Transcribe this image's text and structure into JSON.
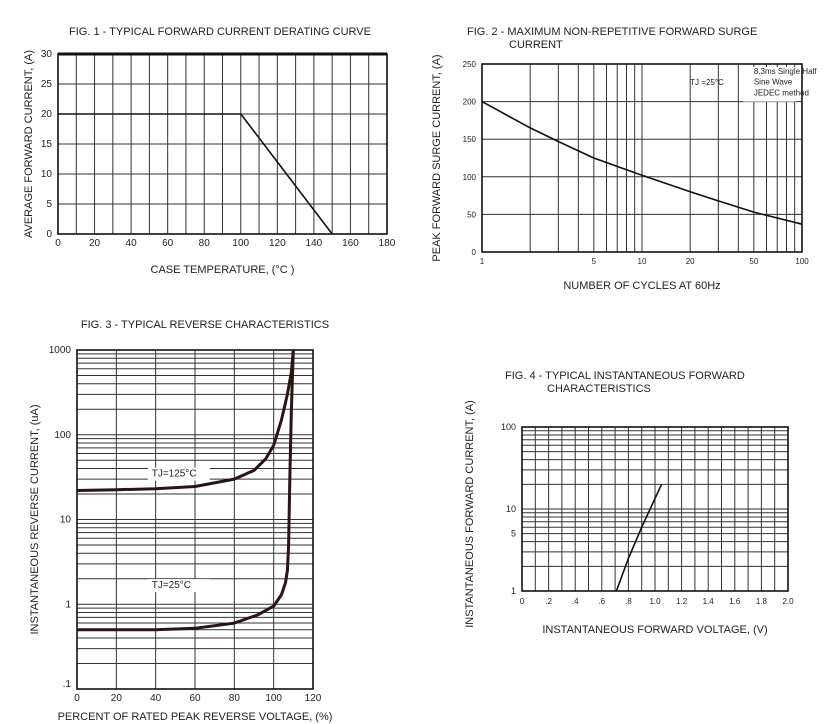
{
  "chart_data": [
    {
      "type": "line",
      "title": [
        "FIG. 1 - TYPICAL FORWARD CURRENT DERATING CURVE"
      ],
      "xlabel": "CASE TEMPERATURE, (°C )",
      "ylabel": "AVERAGE FORWARD CURRENT, (A)",
      "xscale": "linear",
      "yscale": "linear",
      "xlim": [
        0,
        180
      ],
      "ylim": [
        0,
        30
      ],
      "grid": true,
      "xticks": [
        {
          "v": 0,
          "label": "0"
        },
        {
          "v": 20,
          "label": "20"
        },
        {
          "v": 40,
          "label": "40"
        },
        {
          "v": 60,
          "label": "60"
        },
        {
          "v": 80,
          "label": "80"
        },
        {
          "v": 100,
          "label": "100"
        },
        {
          "v": 120,
          "label": "120"
        },
        {
          "v": 140,
          "label": "140"
        },
        {
          "v": 160,
          "label": "160"
        },
        {
          "v": 180,
          "label": "180"
        }
      ],
      "yticks": [
        {
          "v": 0,
          "label": "0"
        },
        {
          "v": 5,
          "label": "5"
        },
        {
          "v": 10,
          "label": "10"
        },
        {
          "v": 15,
          "label": "15"
        },
        {
          "v": 20,
          "label": "20"
        },
        {
          "v": 25,
          "label": "25"
        },
        {
          "v": 30,
          "label": "30"
        }
      ],
      "series": [
        {
          "x": [
            0,
            100,
            150
          ],
          "y": [
            20,
            20,
            0
          ]
        }
      ],
      "annotations": []
    },
    {
      "type": "line",
      "title": [
        "FIG. 2 - MAXIMUM NON-REPETITIVE FORWARD SURGE",
        "CURRENT"
      ],
      "xlabel": "NUMBER OF CYCLES AT 60Hz",
      "ylabel": "PEAK FORWARD SURGE CURRENT, (A)",
      "xscale": "log",
      "yscale": "linear",
      "xlim": [
        1,
        100
      ],
      "ylim": [
        0,
        250
      ],
      "grid": true,
      "xticks": [
        {
          "v": 1,
          "label": "1"
        },
        {
          "v": 5,
          "label": "5"
        },
        {
          "v": 10,
          "label": "10"
        },
        {
          "v": 20,
          "label": "20"
        },
        {
          "v": 50,
          "label": "50"
        },
        {
          "v": 100,
          "label": "100"
        }
      ],
      "yticks": [
        {
          "v": 0,
          "label": "0"
        },
        {
          "v": 50,
          "label": "50"
        },
        {
          "v": 100,
          "label": "100"
        },
        {
          "v": 150,
          "label": "150"
        },
        {
          "v": 200,
          "label": "200"
        },
        {
          "v": 250,
          "label": "250"
        }
      ],
      "series": [
        {
          "x": [
            1,
            2,
            3,
            5,
            10,
            20,
            30,
            50,
            100
          ],
          "y": [
            200,
            165,
            147,
            125,
            102,
            80,
            68,
            53,
            37
          ]
        }
      ],
      "annotations": [
        {
          "text": "TJ =25°C",
          "x": 20,
          "y": 222
        },
        {
          "text": "8.3ms Single Half",
          "x": 50,
          "y": 237
        },
        {
          "text": "Sine Wave",
          "x": 50,
          "y": 223
        },
        {
          "text": "JEDEC method",
          "x": 50,
          "y": 208
        }
      ]
    },
    {
      "type": "line",
      "title": [
        "FIG. 3 - TYPICAL REVERSE CHARACTERISTICS"
      ],
      "xlabel": "PERCENT OF RATED PEAK REVERSE VOLTAGE, (%)",
      "ylabel": "INSTANTANEOUS REVERSE CURRENT, (uA)",
      "xscale": "linear",
      "yscale": "log",
      "xlim": [
        0,
        120
      ],
      "ylim": [
        0.1,
        1000
      ],
      "grid": true,
      "xticks": [
        {
          "v": 0,
          "label": "0"
        },
        {
          "v": 20,
          "label": "20"
        },
        {
          "v": 40,
          "label": "40"
        },
        {
          "v": 60,
          "label": "60"
        },
        {
          "v": 80,
          "label": "80"
        },
        {
          "v": 100,
          "label": "100"
        },
        {
          "v": 120,
          "label": "120"
        }
      ],
      "yticks": [
        {
          "v": 0.1,
          "label": ".1"
        },
        {
          "v": 1,
          "label": "1"
        },
        {
          "v": 10,
          "label": "10"
        },
        {
          "v": 100,
          "label": "100"
        },
        {
          "v": 1000,
          "label": "1000"
        }
      ],
      "series": [
        {
          "name": "TJ=125°C",
          "x": [
            0,
            20,
            40,
            60,
            80,
            90,
            96,
            100,
            104,
            107,
            109,
            110
          ],
          "y": [
            22,
            22.5,
            23,
            24.5,
            30,
            38,
            52,
            75,
            150,
            300,
            550,
            1000
          ]
        },
        {
          "name": "TJ=25°C",
          "x": [
            0,
            40,
            60,
            80,
            92,
            100,
            104,
            106,
            107,
            107.6,
            108.2,
            109,
            110
          ],
          "y": [
            0.5,
            0.5,
            0.52,
            0.6,
            0.75,
            0.95,
            1.3,
            1.8,
            2.5,
            5,
            30,
            200,
            1000
          ]
        }
      ],
      "annotations": [
        {
          "text": "TJ=125°C",
          "x": 38,
          "y": 32
        },
        {
          "text": "TJ=25°C",
          "x": 38,
          "y": 1.55
        }
      ]
    },
    {
      "type": "line",
      "title": [
        "FIG. 4 - TYPICAL INSTANTANEOUS FORWARD",
        "CHARACTERISTICS"
      ],
      "xlabel": "INSTANTANEOUS FORWARD VOLTAGE, (V)",
      "ylabel": "INSTANTANEOUS FORWARD CURRENT, (A)",
      "xscale": "linear",
      "yscale": "log",
      "xlim": [
        0,
        2.0
      ],
      "ylim": [
        1,
        100
      ],
      "grid": true,
      "xticks": [
        {
          "v": 0,
          "label": "0"
        },
        {
          "v": 0.2,
          "label": ".2"
        },
        {
          "v": 0.4,
          "label": ".4"
        },
        {
          "v": 0.6,
          "label": ".6"
        },
        {
          "v": 0.8,
          "label": ".8"
        },
        {
          "v": 1.0,
          "label": "1.0"
        },
        {
          "v": 1.2,
          "label": "1.2"
        },
        {
          "v": 1.4,
          "label": "1.4"
        },
        {
          "v": 1.6,
          "label": "1.6"
        },
        {
          "v": 1.8,
          "label": "1.8"
        },
        {
          "v": 2.0,
          "label": "2.0"
        }
      ],
      "yticks": [
        {
          "v": 1,
          "label": "1"
        },
        {
          "v": 5,
          "label": "5"
        },
        {
          "v": 10,
          "label": "10"
        },
        {
          "v": 100,
          "label": "100"
        }
      ],
      "series": [
        {
          "x": [
            0.71,
            0.8,
            0.9,
            1.05
          ],
          "y": [
            1,
            2.5,
            6,
            20
          ]
        }
      ],
      "annotations": []
    }
  ]
}
